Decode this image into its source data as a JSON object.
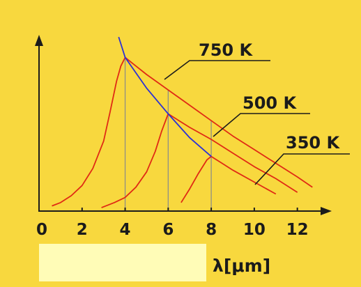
{
  "chart_data": {
    "type": "line",
    "xlabel": "λ[μm]",
    "ylabel": "",
    "xlim": [
      0,
      13.5
    ],
    "ylim": [
      0,
      1.0
    ],
    "x_ticks": [
      "0",
      "2",
      "4",
      "6",
      "8",
      "10",
      "12"
    ],
    "grid": false,
    "series": [
      {
        "name": "750 K",
        "x": [
          0.6,
          1.0,
          1.5,
          2.0,
          2.5,
          3.0,
          3.3,
          3.6,
          3.8,
          4.0,
          4.4,
          5.0,
          6.0,
          7.0,
          8.0,
          9.0,
          10.0,
          11.0,
          12.0,
          12.7
        ],
        "y": [
          0.03,
          0.05,
          0.09,
          0.15,
          0.25,
          0.41,
          0.58,
          0.76,
          0.85,
          0.9,
          0.86,
          0.8,
          0.71,
          0.62,
          0.53,
          0.44,
          0.36,
          0.28,
          0.2,
          0.14
        ]
      },
      {
        "name": "500 K",
        "x": [
          2.9,
          3.5,
          4.0,
          4.5,
          5.0,
          5.4,
          5.7,
          6.0,
          6.5,
          7.0,
          8.0,
          9.0,
          10.0,
          11.0,
          12.0
        ],
        "y": [
          0.02,
          0.05,
          0.08,
          0.14,
          0.23,
          0.35,
          0.47,
          0.57,
          0.53,
          0.49,
          0.42,
          0.34,
          0.26,
          0.19,
          0.11
        ]
      },
      {
        "name": "350 K",
        "x": [
          6.6,
          7.0,
          7.4,
          7.8,
          8.0,
          8.5,
          9.0,
          10.0,
          11.0
        ],
        "y": [
          0.05,
          0.13,
          0.22,
          0.3,
          0.32,
          0.28,
          0.24,
          0.17,
          0.1
        ]
      }
    ],
    "peak_locus": {
      "x": [
        3.7,
        4.0,
        5.0,
        6.0,
        7.0,
        8.0
      ],
      "y": [
        1.02,
        0.9,
        0.72,
        0.57,
        0.43,
        0.32
      ]
    },
    "peak_markers_x": [
      4,
      6,
      8
    ],
    "labels": {
      "t750": "750 K",
      "t500": "500 K",
      "t350": "350 K"
    },
    "colors": {
      "background": "#f8d83e",
      "curve": "#e02a14",
      "locus": "#2b30d6",
      "axis": "#1b1b1b",
      "marker": "#8f8f85",
      "label_box": "#fffcb7"
    }
  }
}
